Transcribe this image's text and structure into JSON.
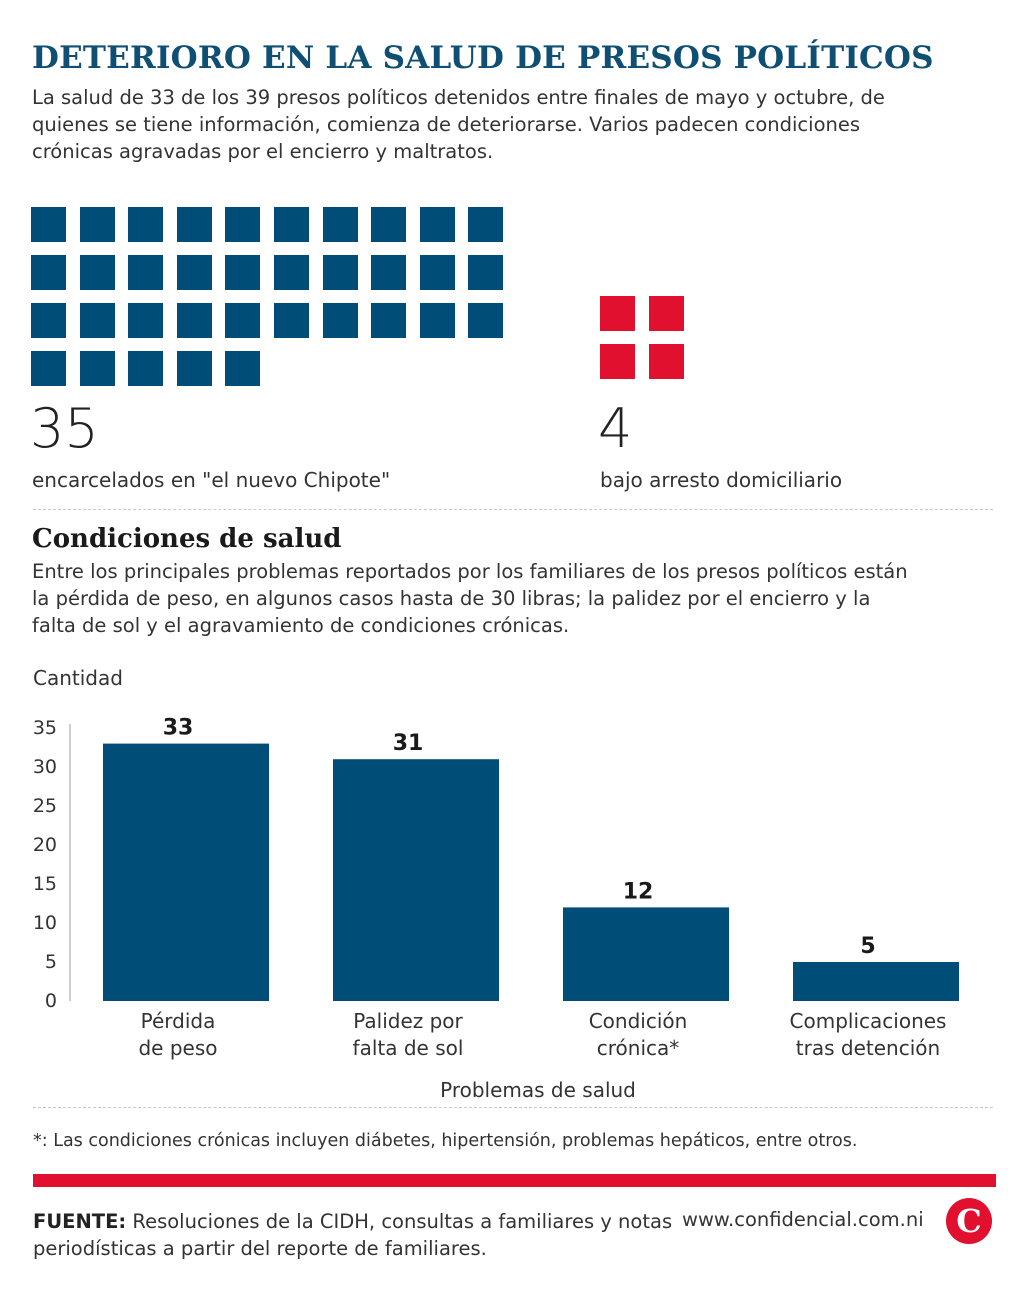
{
  "title": "DETERIORO EN LA SALUD DE PRESOS POLÍTICOS",
  "intro": "La salud de 33 de los 39 presos políticos detenidos entre finales de mayo y octubre, de quienes se tiene información, comienza de deteriorarse. Varios padecen condiciones crónicas agravadas por el encierro y maltratos.",
  "waffle": {
    "jailed": {
      "count": 35,
      "number": "35",
      "label": "encarcelados en \"el nuevo Chipote\"",
      "color": "#004e78"
    },
    "house_arrest": {
      "count": 4,
      "number": "4",
      "label": "bajo arresto domiciliario",
      "color": "#e0102e"
    }
  },
  "section": {
    "title": "Condiciones de salud",
    "description": "Entre los principales problemas reportados por los familiares de los presos políticos están la pérdida de peso, en algunos casos hasta de 30 libras; la palidez por el encierro y la falta de sol y el agravamiento de condiciones crónicas."
  },
  "chart_data": {
    "type": "bar",
    "ylabel": "Cantidad",
    "xlabel": "Problemas de salud",
    "categories": [
      [
        "Pérdida",
        "de peso"
      ],
      [
        "Palidez por",
        "falta de sol"
      ],
      [
        "Condición",
        "crónica*"
      ],
      [
        "Complicaciones",
        "tras detención"
      ]
    ],
    "values": [
      33,
      31,
      12,
      5
    ],
    "ylim": [
      0,
      35
    ],
    "yticks": [
      0,
      5,
      10,
      15,
      20,
      25,
      30,
      35
    ],
    "bar_color": "#004e78",
    "grid": false
  },
  "footnote": "*: Las condiciones crónicas incluyen diábetes, hipertensión, problemas hepáticos, entre otros.",
  "source": {
    "label": "FUENTE:",
    "text": " Resoluciones de la CIDH, consultas a familiares y notas periodísticas a partir del reporte de familiares."
  },
  "website": "www.confidencial.com.ni",
  "logo_letter": "C",
  "colors": {
    "brand_blue": "#0f4f73",
    "accent_red": "#e0102e"
  }
}
